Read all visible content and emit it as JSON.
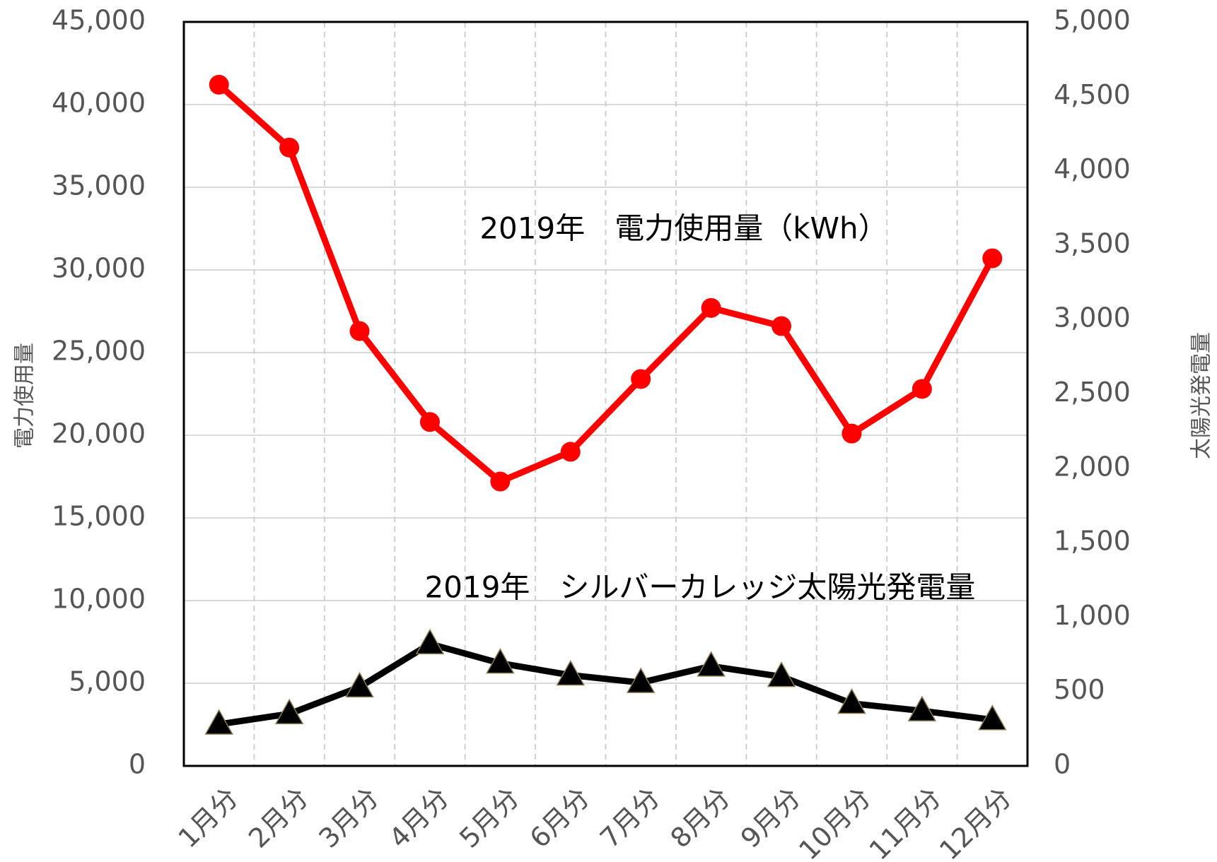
{
  "chart_data": {
    "type": "line",
    "categories": [
      "1月分",
      "2月分",
      "3月分",
      "4月分",
      "5月分",
      "6月分",
      "7月分",
      "8月分",
      "9月分",
      "10月分",
      "11月分",
      "12月分"
    ],
    "series": [
      {
        "name": "2019年　電力使用量（kWh）",
        "color": "#ff0000",
        "marker": "circle",
        "values": [
          41200,
          37400,
          26300,
          20800,
          17200,
          19000,
          23400,
          27700,
          26600,
          20100,
          22800,
          30700
        ]
      },
      {
        "name": "2019年　シルバーカレッジ太陽光発電量",
        "color": "#000000",
        "marker": "triangle",
        "axis": "y2",
        "values": [
          280,
          350,
          530,
          820,
          690,
          610,
          560,
          670,
          600,
          420,
          370,
          310
        ]
      }
    ],
    "ylabel": "電力使用量",
    "y2label": "太陽光発電量",
    "ylim": [
      0,
      45000
    ],
    "yticks": [
      0,
      {
        "value": 5000,
        "label": "5,000"
      },
      {
        "value": 10000,
        "label": "10,000"
      },
      {
        "value": 15000,
        "label": "15,000"
      },
      {
        "value": 20000,
        "label": "20,000"
      },
      {
        "value": 25000,
        "label": "25,000"
      },
      {
        "value": 30000,
        "label": "30,000"
      },
      {
        "value": 35000,
        "label": "35,000"
      },
      {
        "value": 40000,
        "label": "40,000"
      },
      {
        "value": 45000,
        "label": "45,000"
      }
    ],
    "y2lim": [
      0,
      5000
    ],
    "y2ticks": [
      0,
      500,
      {
        "value": 1000,
        "label": "1,000"
      },
      {
        "value": 1500,
        "label": "1,500"
      },
      {
        "value": 2000,
        "label": "2,000"
      },
      {
        "value": 2500,
        "label": "2,500"
      },
      {
        "value": 3000,
        "label": "3,000"
      },
      {
        "value": 3500,
        "label": "3,500"
      },
      {
        "value": 4000,
        "label": "4,000"
      },
      {
        "value": 4500,
        "label": "4,500"
      },
      {
        "value": 5000,
        "label": "5,000"
      }
    ],
    "grid": true
  }
}
